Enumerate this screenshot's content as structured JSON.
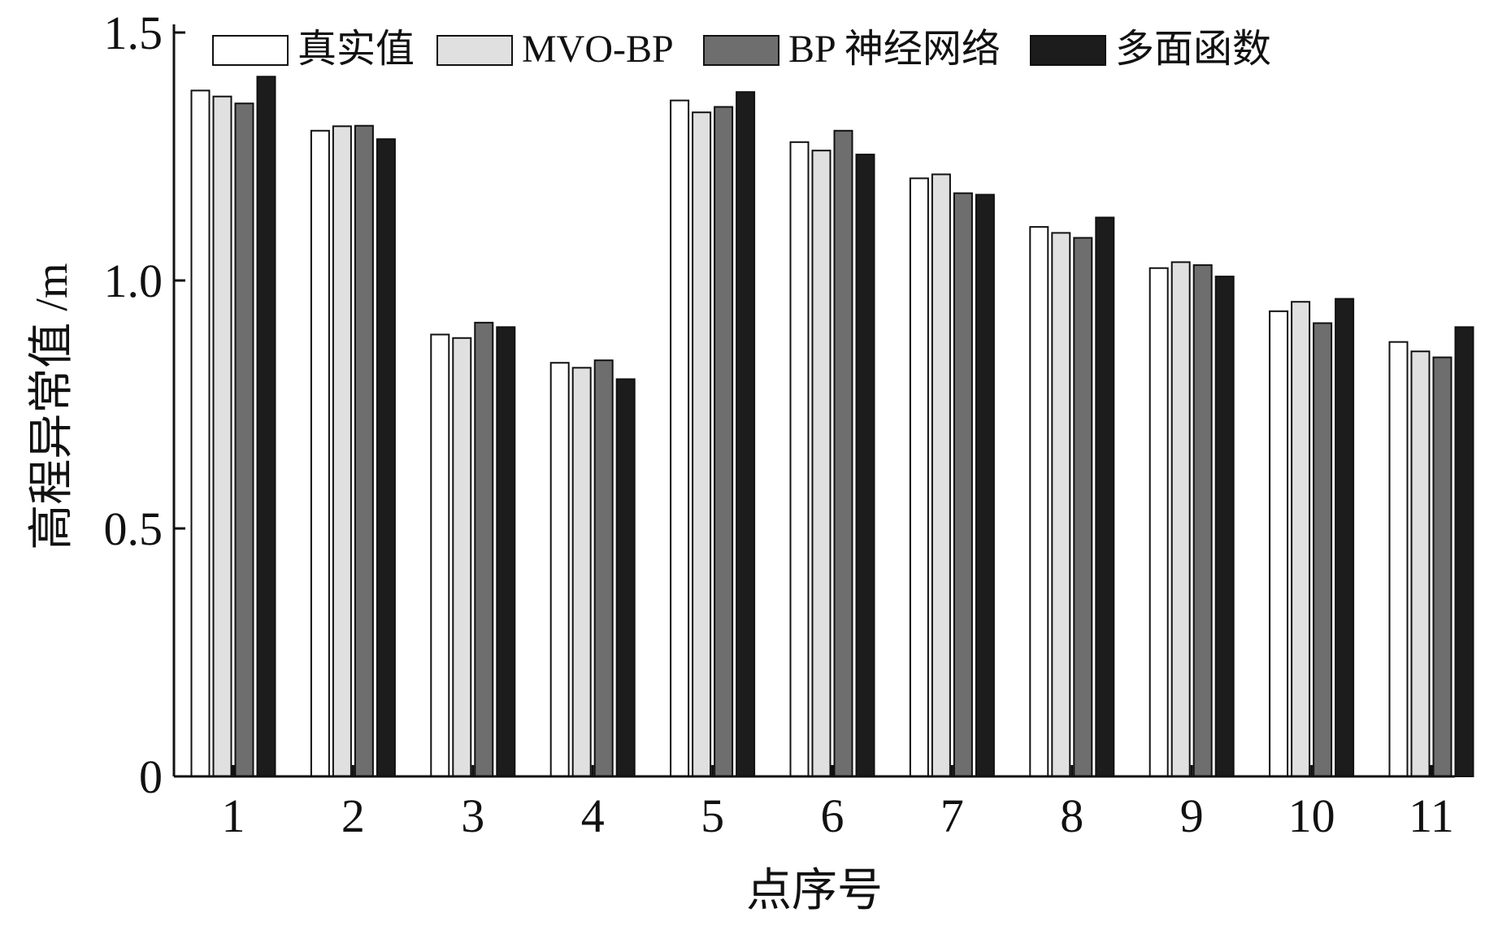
{
  "chart_data": {
    "type": "bar",
    "title": "",
    "xlabel": "点序号",
    "ylabel": "高程异常值 /m",
    "ylim": [
      0,
      1.5
    ],
    "yticks": [
      "0",
      "0.5",
      "1.0",
      "1.5"
    ],
    "categories": [
      "1",
      "2",
      "3",
      "4",
      "5",
      "6",
      "7",
      "8",
      "9",
      "10",
      "11"
    ],
    "grid": false,
    "legend_position": "top",
    "series": [
      {
        "name": "真实值",
        "color": "#ffffff",
        "values": [
          1.383,
          1.302,
          0.891,
          0.834,
          1.363,
          1.279,
          1.206,
          1.108,
          1.025,
          0.938,
          0.876
        ]
      },
      {
        "name": "MVO-BP",
        "color": "#e0e0e0",
        "values": [
          1.371,
          1.311,
          0.884,
          0.824,
          1.339,
          1.262,
          1.214,
          1.096,
          1.037,
          0.957,
          0.857
        ]
      },
      {
        "name": "BP 神经网络",
        "color": "#6e6e6e",
        "values": [
          1.357,
          1.312,
          0.915,
          0.839,
          1.35,
          1.302,
          1.176,
          1.086,
          1.031,
          0.914,
          0.845
        ]
      },
      {
        "name": "多面函数",
        "color": "#1c1c1c",
        "values": [
          1.411,
          1.285,
          0.906,
          0.801,
          1.38,
          1.254,
          1.173,
          1.127,
          1.008,
          0.963,
          0.906
        ]
      }
    ]
  }
}
